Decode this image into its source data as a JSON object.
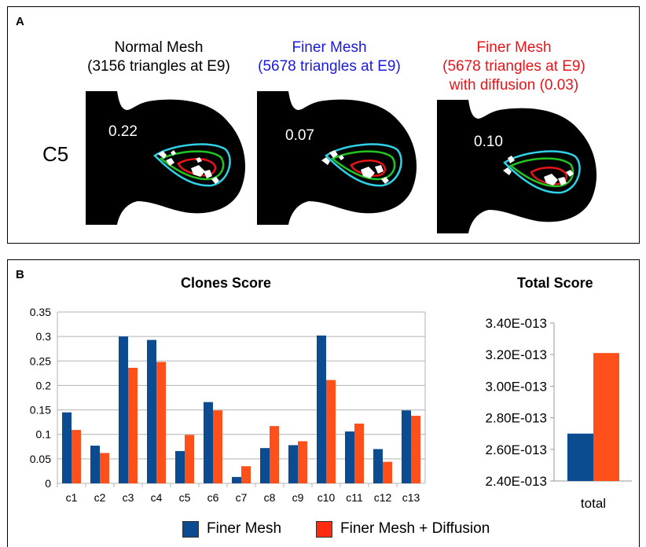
{
  "panel_a": {
    "label": "A",
    "row_label": "C5",
    "meshes": [
      {
        "line1": "Normal Mesh",
        "line2": "(3156 triangles at E9)",
        "line3": "",
        "color": "#000000",
        "score": "0.22"
      },
      {
        "line1": "Finer Mesh",
        "line2": "(5678 triangles at E9)",
        "line3": "",
        "color": "#1a1adf",
        "score": "0.07"
      },
      {
        "line1": "Finer Mesh",
        "line2": "(5678 triangles at E9)",
        "line3": "with diffusion (0.03)",
        "color": "#e8141a",
        "score": "0.10"
      }
    ]
  },
  "panel_b": {
    "label": "B",
    "legend": [
      {
        "label": "Finer Mesh",
        "color": "#0b4b8f"
      },
      {
        "label": "Finer Mesh + Diffusion",
        "color": "#ff4f1a"
      }
    ]
  },
  "chart_data": [
    {
      "type": "bar",
      "title": "Clones Score",
      "categories": [
        "c1",
        "c2",
        "c3",
        "c4",
        "c5",
        "c6",
        "c7",
        "c8",
        "c9",
        "c10",
        "c11",
        "c12",
        "c13"
      ],
      "series": [
        {
          "name": "Finer Mesh",
          "color": "#0b4b8f",
          "values": [
            0.145,
            0.077,
            0.3,
            0.293,
            0.066,
            0.166,
            0.013,
            0.072,
            0.078,
            0.302,
            0.106,
            0.07,
            0.149
          ]
        },
        {
          "name": "Finer Mesh + Diffusion",
          "color": "#ff4f1a",
          "values": [
            0.109,
            0.062,
            0.236,
            0.248,
            0.099,
            0.149,
            0.035,
            0.117,
            0.086,
            0.211,
            0.122,
            0.044,
            0.138
          ]
        }
      ],
      "ylim": [
        0,
        0.35
      ],
      "yticks": [
        "0",
        "0.05",
        "0.1",
        "0.15",
        "0.2",
        "0.25",
        "0.3",
        "0.35"
      ],
      "grid": true
    },
    {
      "type": "bar",
      "title": "Total Score",
      "categories": [
        "total"
      ],
      "series": [
        {
          "name": "Finer Mesh",
          "color": "#0b4b8f",
          "values": [
            2.7e-13
          ]
        },
        {
          "name": "Finer Mesh + Diffusion",
          "color": "#ff4f1a",
          "values": [
            3.21e-13
          ]
        }
      ],
      "ylim": [
        2.4e-13,
        3.4e-13
      ],
      "yticks": [
        "2.40E-013",
        "2.60E-013",
        "2.80E-013",
        "3.00E-013",
        "3.20E-013",
        "3.40E-013"
      ],
      "grid": false
    }
  ]
}
